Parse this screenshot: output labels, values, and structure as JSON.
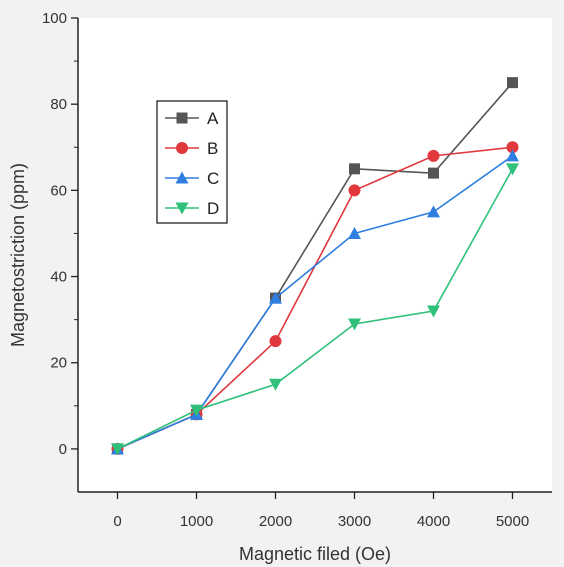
{
  "chart_data": {
    "type": "line",
    "x": [
      0,
      1000,
      2000,
      3000,
      4000,
      5000
    ],
    "xlabel": "Magnetic filed (Oe)",
    "ylabel": "Magnetostriction (ppm)",
    "xlim": [
      -500,
      5500
    ],
    "ylim": [
      -10,
      100
    ],
    "xticks": [
      "0",
      "1000",
      "2000",
      "3000",
      "4000",
      "5000"
    ],
    "yticks": [
      "0",
      "20",
      "40",
      "60",
      "80",
      "100"
    ],
    "ytick_values": [
      0,
      20,
      40,
      60,
      80,
      100
    ],
    "grid": false,
    "legend_position": "top-left",
    "series": [
      {
        "name": "A",
        "values": [
          0,
          8,
          35,
          65,
          64,
          85
        ],
        "color": "#555555",
        "marker": "square"
      },
      {
        "name": "B",
        "values": [
          0,
          8,
          25,
          60,
          68,
          70
        ],
        "color": "#e0383c",
        "marker": "circle"
      },
      {
        "name": "C",
        "values": [
          0,
          8,
          35,
          50,
          55,
          68
        ],
        "color": "#2f7fe0",
        "marker": "triangle-up"
      },
      {
        "name": "D",
        "values": [
          0,
          9,
          15,
          29,
          32,
          65
        ],
        "color": "#2fc07a",
        "marker": "triangle-down"
      }
    ]
  }
}
